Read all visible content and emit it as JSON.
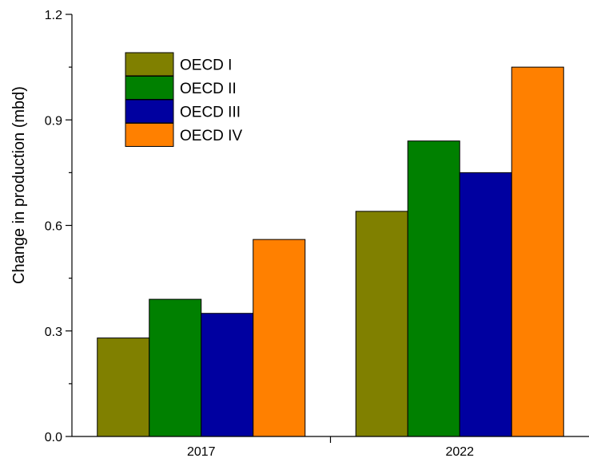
{
  "chart_data": {
    "type": "bar",
    "title": "",
    "xlabel": "",
    "ylabel": "Change in production (mbd)",
    "categories": [
      "2017",
      "2022"
    ],
    "ylim": [
      0.0,
      1.2
    ],
    "yticks": [
      "0.0",
      "0.3",
      "0.6",
      "0.9",
      "1.2"
    ],
    "grid": false,
    "legend_position": "top-left",
    "series": [
      {
        "name": "OECD I",
        "color": "#808000",
        "values": [
          0.28,
          0.64
        ]
      },
      {
        "name": "OECD II",
        "color": "#008000",
        "values": [
          0.39,
          0.84
        ]
      },
      {
        "name": "OECD III",
        "color": "#0000A0",
        "values": [
          0.35,
          0.75
        ]
      },
      {
        "name": "OECD IV",
        "color": "#FF8000",
        "values": [
          0.56,
          1.05
        ]
      }
    ]
  }
}
